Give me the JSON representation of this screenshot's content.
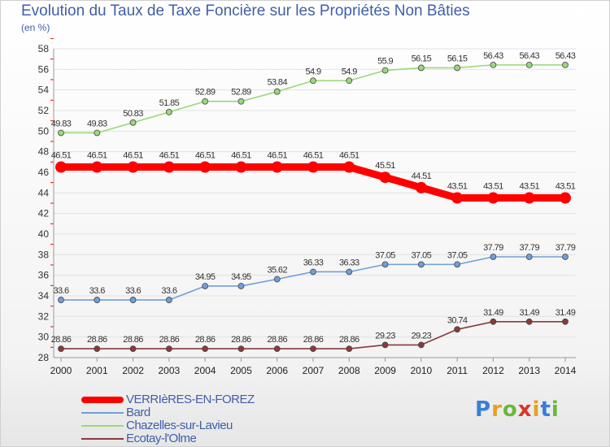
{
  "header": {
    "title": "Evolution du Taux de Taxe Foncière sur les Propriétés Non Bâties",
    "unit": "(en %)"
  },
  "logo": {
    "text": "Proxiti",
    "colors": [
      "#3a7dd8",
      "#e8a020",
      "#6bb83a",
      "#d8352a",
      "#e8a020",
      "#3a7dd8",
      "#6bb83a"
    ]
  },
  "chart_data": {
    "type": "line",
    "title": "Evolution du Taux de Taxe Foncière sur les Propriétés Non Bâties",
    "ylabel": "(en %)",
    "xlabel": "",
    "x": [
      "2000",
      "2001",
      "2002",
      "2003",
      "2004",
      "2005",
      "2006",
      "2007",
      "2008",
      "2009",
      "2010",
      "2011",
      "2012",
      "2013",
      "2014"
    ],
    "ylim": [
      28,
      58
    ],
    "yticks": [
      28,
      30,
      32,
      34,
      36,
      38,
      40,
      42,
      44,
      46,
      48,
      50,
      52,
      54,
      56,
      58
    ],
    "grid": true,
    "legend_position": "bottom-left",
    "series": [
      {
        "name": "VERRIèRES-EN-FOREZ",
        "color": "#ff0000",
        "highlight": true,
        "values": [
          46.51,
          46.51,
          46.51,
          46.51,
          46.51,
          46.51,
          46.51,
          46.51,
          46.51,
          45.51,
          44.51,
          43.51,
          43.51,
          43.51,
          43.51
        ],
        "labels": [
          "46.51",
          "46.51",
          "46.51",
          "46.51",
          "46.51",
          "46.51",
          "46.51",
          "46.51",
          "46.51",
          "45.51",
          "44.51",
          "43.51",
          "43.51",
          "43.51",
          "43.51"
        ]
      },
      {
        "name": "Bard",
        "color": "#6f9fd8",
        "highlight": false,
        "values": [
          33.6,
          33.6,
          33.6,
          33.6,
          34.95,
          34.95,
          35.62,
          36.33,
          36.33,
          37.05,
          37.05,
          37.05,
          37.79,
          37.79,
          37.79
        ],
        "labels": [
          "33.6",
          "33.6",
          "33.6",
          "33.6",
          "34.95",
          "34.95",
          "35.62",
          "36.33",
          "36.33",
          "37.05",
          "37.05",
          "37.05",
          "37.79",
          "37.79",
          "37.79"
        ]
      },
      {
        "name": "Chazelles-sur-Lavieu",
        "color": "#99d97a",
        "highlight": false,
        "values": [
          49.83,
          49.83,
          50.83,
          51.85,
          52.89,
          52.89,
          53.84,
          54.9,
          54.9,
          55.9,
          56.15,
          56.15,
          56.43,
          56.43,
          56.43
        ],
        "labels": [
          "49.83",
          "49.83",
          "50.83",
          "51.85",
          "52.89",
          "52.89",
          "53.84",
          "54.9",
          "54.9",
          "55.9",
          "56.15",
          "56.15",
          "56.43",
          "56.43",
          "56.43"
        ]
      },
      {
        "name": "Ecotay-l'Olme",
        "color": "#8b3a3a",
        "highlight": false,
        "values": [
          28.86,
          28.86,
          28.86,
          28.86,
          28.86,
          28.86,
          28.86,
          28.86,
          28.86,
          29.23,
          29.23,
          30.74,
          31.49,
          31.49,
          31.49
        ],
        "labels": [
          "28.86",
          "28.86",
          "28.86",
          "28.86",
          "28.86",
          "28.86",
          "28.86",
          "28.86",
          "28.86",
          "29.23",
          "29.23",
          "30.74",
          "31.49",
          "31.49",
          "31.49"
        ]
      }
    ]
  }
}
